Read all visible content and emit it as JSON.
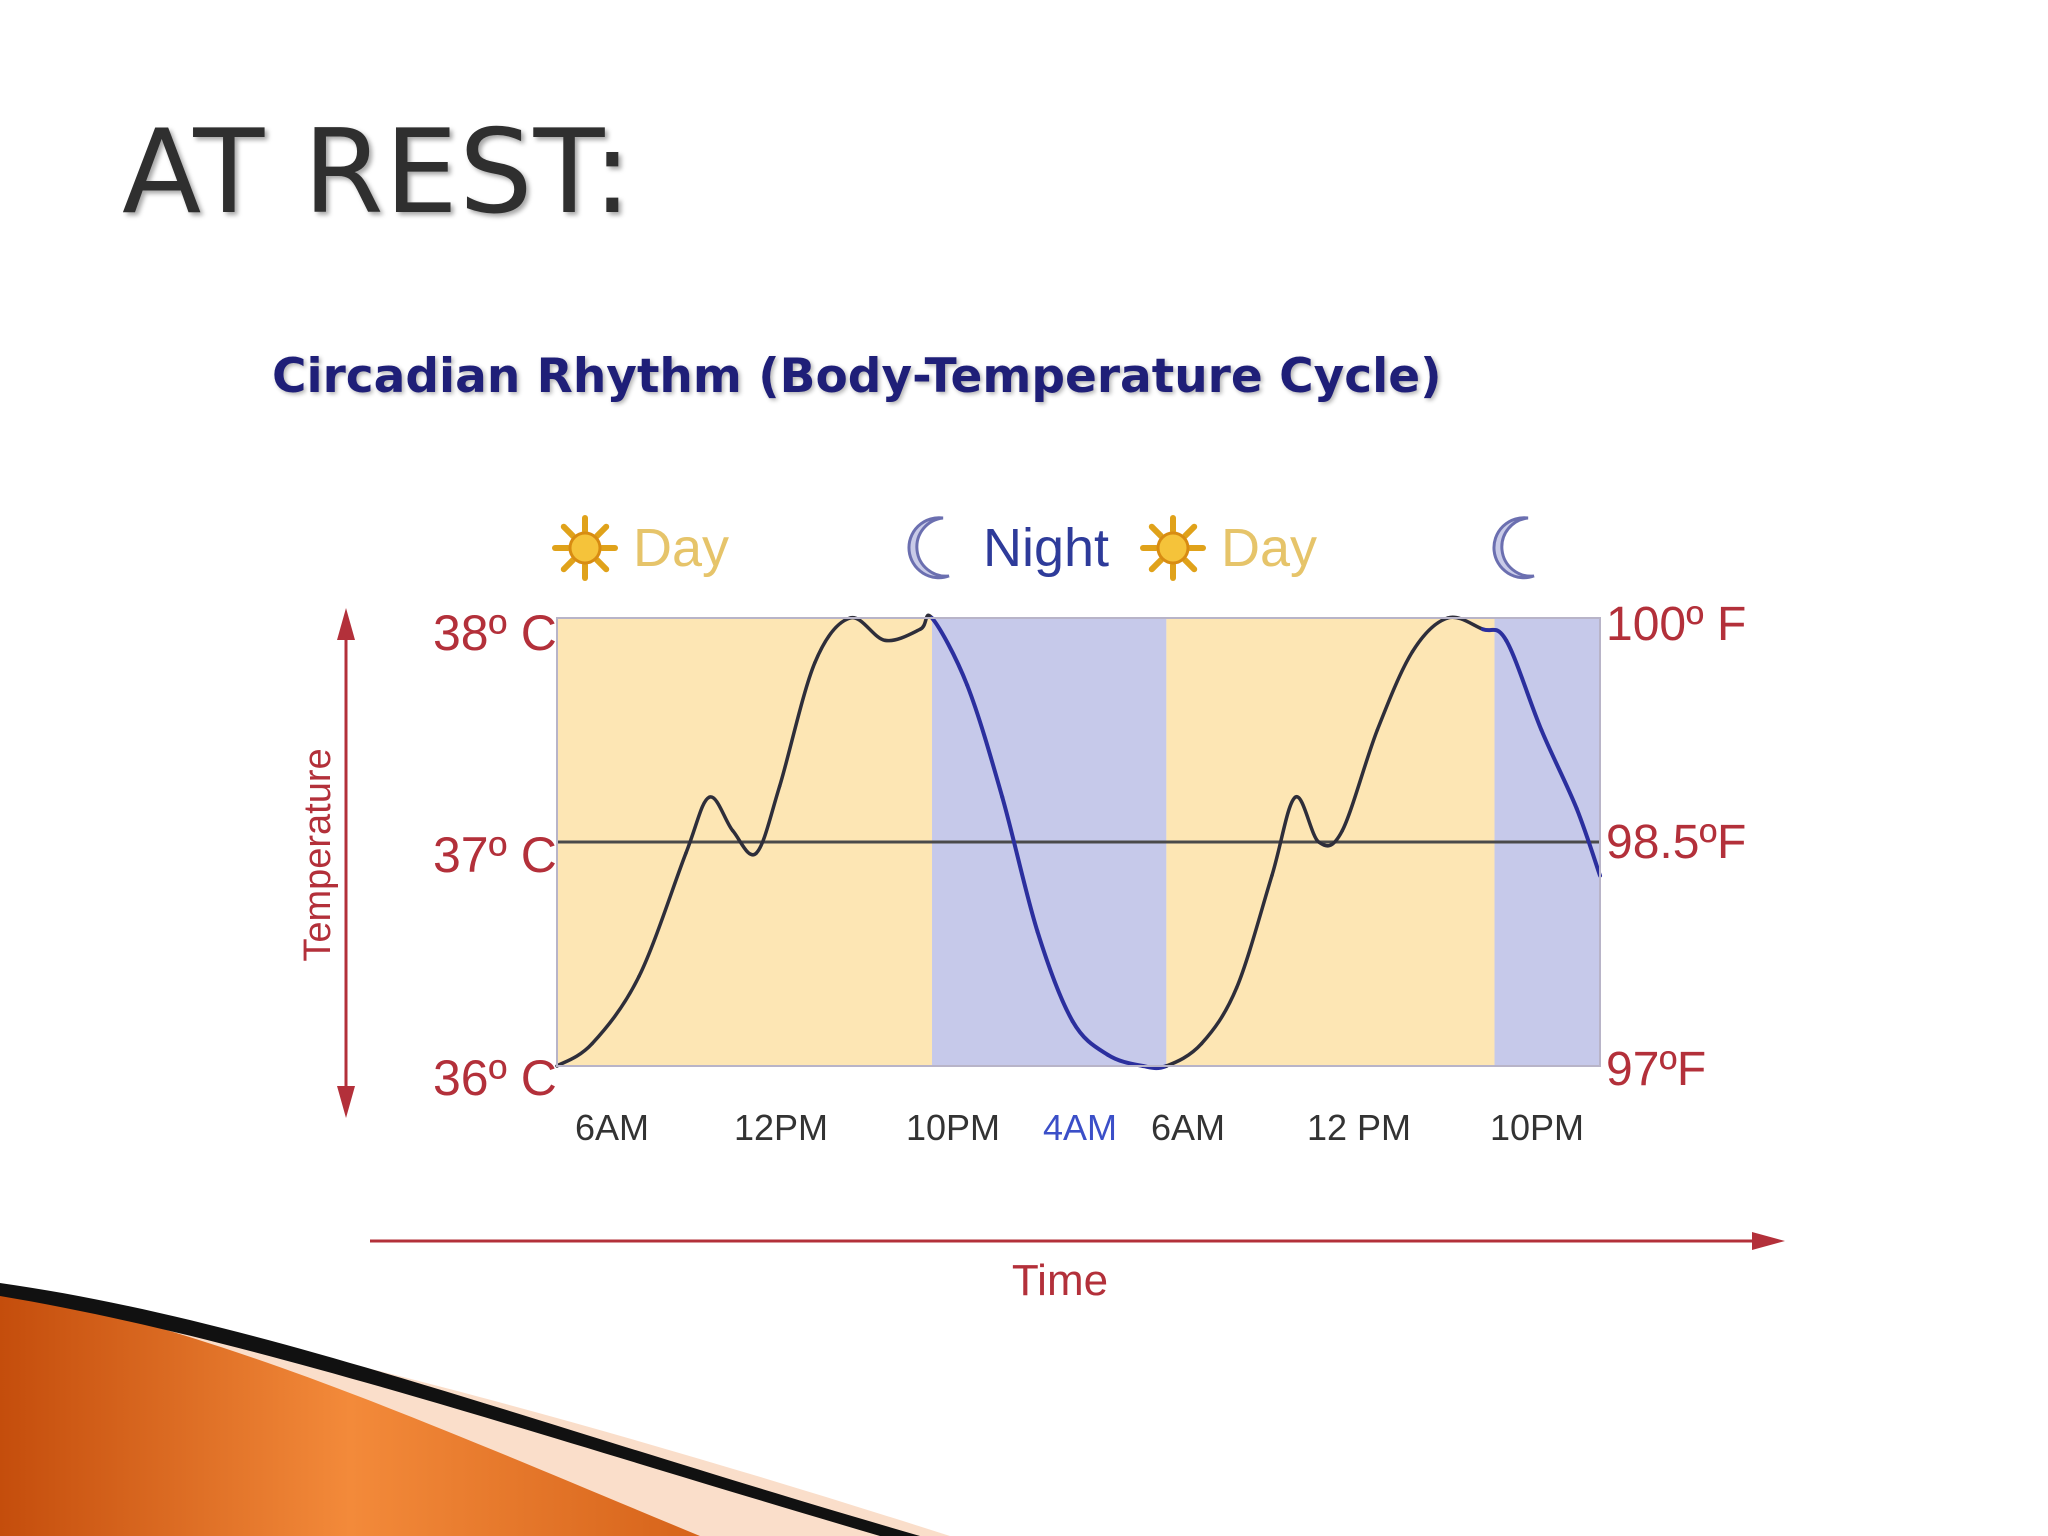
{
  "slide": {
    "title": "AT REST:",
    "colors": {
      "orange_swoosh": "#e2691e",
      "swoosh_dark": "#111111"
    }
  },
  "chart_data": {
    "type": "line",
    "title": "Circadian Rhythm (Body-Temperature Cycle)",
    "xlabel": "Time",
    "ylabel": "Temperature",
    "y_left_ticks": [
      "36º C",
      "37º C",
      "38º C"
    ],
    "y_right_ticks": [
      "97ºF",
      "98.5ºF",
      "100º F"
    ],
    "ylim": [
      36,
      38
    ],
    "x_ticks": [
      "6AM",
      "12PM",
      "10PM",
      "4AM",
      "6AM",
      "12 PM",
      "10PM"
    ],
    "period_labels": [
      {
        "label": "Day",
        "icon": "sun-icon"
      },
      {
        "label": "Night",
        "icon": "moon-icon"
      },
      {
        "label": "Day",
        "icon": "sun-icon"
      },
      {
        "label": "",
        "icon": "moon-icon"
      }
    ],
    "bands": [
      {
        "period": "day",
        "from": 0,
        "to": 16
      },
      {
        "period": "night",
        "from": 16,
        "to": 26
      },
      {
        "period": "day",
        "from": 26,
        "to": 40
      },
      {
        "period": "night",
        "from": 40,
        "to": 44.5
      }
    ],
    "series": [
      {
        "name": "",
        "x": [
          0,
          1.5,
          3.5,
          5.5,
          6.5,
          7.5,
          8.5,
          9.5,
          11,
          12.5,
          14,
          15.5,
          16,
          17.5,
          19,
          20.5,
          22,
          23.5,
          25,
          26,
          27.5,
          29,
          30.5,
          31.5,
          32.5,
          33.5,
          35,
          36.5,
          38,
          39.5,
          40.5,
          42,
          43.5,
          44.5
        ],
        "values": [
          36.0,
          36.1,
          36.4,
          36.95,
          37.2,
          37.05,
          36.95,
          37.25,
          37.8,
          38.0,
          37.9,
          37.95,
          38.0,
          37.7,
          37.2,
          36.6,
          36.2,
          36.05,
          36.0,
          36.0,
          36.1,
          36.35,
          36.85,
          37.2,
          37.0,
          37.05,
          37.5,
          37.85,
          38.0,
          37.95,
          37.9,
          37.5,
          37.15,
          36.85
        ],
        "color": "#2b2f9e"
      }
    ],
    "colors": {
      "day_band": "#fde6b4",
      "night_band": "#c6c9ea",
      "curve_day": "#2e2e3a",
      "curve_night": "#2b2f9e",
      "axis_text": "#b3303a",
      "day_text": "#e6c46a",
      "night_text": "#2e3b9a",
      "title_text": "#1f1f78",
      "tick_highlight": "#3b4fc8"
    }
  }
}
